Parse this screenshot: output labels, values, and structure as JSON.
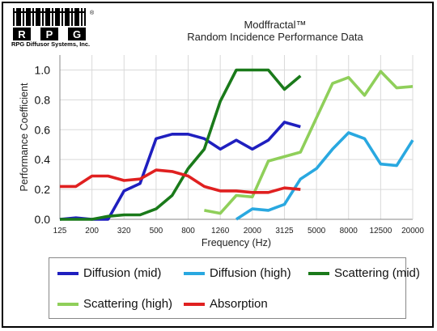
{
  "logo": {
    "letters": [
      "R",
      "P",
      "G"
    ],
    "registered": "®",
    "company": "RPG Diffusor Systems, Inc."
  },
  "header": {
    "title_line1": "Modffractal™",
    "title_line2": "Random Incidence Performance Data"
  },
  "chart_data": {
    "type": "line",
    "title": "Random Incidence Performance Data",
    "xlabel": "Frequency (Hz)",
    "ylabel": "Performance Coefficient",
    "x_scale": "log (1/3 octave)",
    "categories": [
      "125",
      "160",
      "200",
      "250",
      "320",
      "400",
      "500",
      "630",
      "800",
      "1000",
      "1260",
      "1600",
      "2000",
      "2500",
      "3125",
      "4000",
      "5000",
      "6300",
      "8000",
      "10000",
      "12500",
      "16000",
      "20000"
    ],
    "xtick_labels": [
      "125",
      "200",
      "320",
      "500",
      "800",
      "1260",
      "2000",
      "3125",
      "5000",
      "8000",
      "12500",
      "20000"
    ],
    "ylim": [
      0,
      1.1
    ],
    "yticks": [
      0.0,
      0.2,
      0.4,
      0.6,
      0.8,
      1.0
    ],
    "ytick_labels": [
      "0.0",
      "0.2",
      "0.4",
      "0.6",
      "0.8",
      "1.0"
    ],
    "grid": true,
    "legend_position": "bottom",
    "series": [
      {
        "name": "Diffusion (mid)",
        "color": "#1f1fbf",
        "values": [
          0.0,
          0.01,
          0.0,
          0.0,
          0.19,
          0.24,
          0.54,
          0.57,
          0.57,
          0.54,
          0.47,
          0.53,
          0.47,
          0.53,
          0.65,
          0.62,
          null,
          null,
          null,
          null,
          null,
          null,
          null
        ]
      },
      {
        "name": "Diffusion (high)",
        "color": "#29a8e0",
        "values": [
          null,
          null,
          null,
          null,
          null,
          null,
          null,
          null,
          null,
          null,
          null,
          0.0,
          0.07,
          0.06,
          0.1,
          0.27,
          0.34,
          0.47,
          0.58,
          0.54,
          0.37,
          0.36,
          0.53
        ]
      },
      {
        "name": "Scattering (mid)",
        "color": "#1a7a1a",
        "values": [
          0.0,
          0.0,
          0.0,
          0.02,
          0.03,
          0.03,
          0.07,
          0.16,
          0.34,
          0.47,
          0.79,
          1.0,
          1.0,
          1.0,
          0.87,
          0.96,
          null,
          null,
          null,
          null,
          null,
          null,
          null
        ]
      },
      {
        "name": "Scattering (high)",
        "color": "#8fcf5a",
        "values": [
          null,
          null,
          null,
          null,
          null,
          null,
          null,
          null,
          null,
          0.06,
          0.04,
          0.16,
          0.15,
          0.39,
          0.42,
          0.45,
          0.68,
          0.91,
          0.95,
          0.83,
          0.99,
          0.88,
          0.89
        ]
      },
      {
        "name": "Absorption",
        "color": "#e02020",
        "values": [
          0.22,
          0.22,
          0.29,
          0.29,
          0.26,
          0.27,
          0.33,
          0.32,
          0.29,
          0.22,
          0.19,
          0.19,
          0.18,
          0.18,
          0.21,
          0.2,
          null,
          null,
          null,
          null,
          null,
          null,
          null
        ]
      }
    ]
  }
}
